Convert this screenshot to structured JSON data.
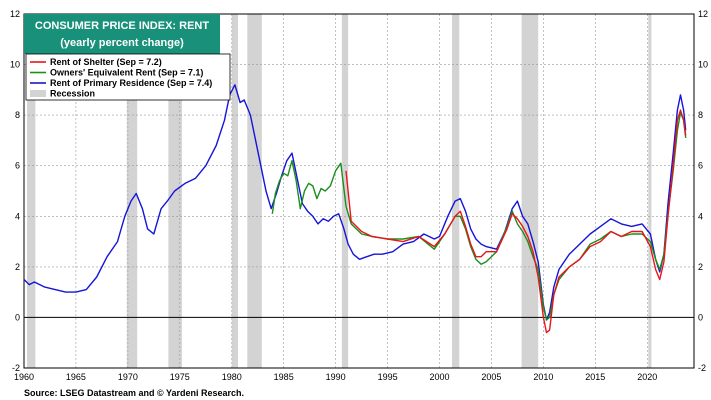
{
  "chart_data": {
    "type": "line",
    "title": "CONSUMER PRICE INDEX: RENT",
    "subtitle": "(yearly percent change)",
    "source": "Source: LSEG Datastream and © Yardeni Research.",
    "xlim": [
      1960,
      2024.5
    ],
    "ylim": [
      -2,
      12
    ],
    "x_ticks": [
      1960,
      1965,
      1970,
      1975,
      1980,
      1985,
      1990,
      1995,
      2000,
      2005,
      2010,
      2015,
      2020
    ],
    "y_ticks": [
      -2,
      0,
      2,
      4,
      6,
      8,
      10,
      12
    ],
    "grid": true,
    "legend_position": "top-left",
    "recessions": [
      [
        1960.3,
        1961.1
      ],
      [
        1969.9,
        1970.9
      ],
      [
        1973.9,
        1975.2
      ],
      [
        1980.0,
        1980.6
      ],
      [
        1981.5,
        1982.9
      ],
      [
        1990.6,
        1991.2
      ],
      [
        2001.2,
        2001.9
      ],
      [
        2007.9,
        2009.5
      ],
      [
        2020.1,
        2020.4
      ]
    ],
    "series": [
      {
        "name": "Rent of Shelter (Sep = 7.2)",
        "color": "#e8151b",
        "points": [
          [
            1991.0,
            5.8
          ],
          [
            1991.5,
            3.8
          ],
          [
            1992.5,
            3.4
          ],
          [
            1993.5,
            3.2
          ],
          [
            1995.0,
            3.1
          ],
          [
            1996.5,
            3.0
          ],
          [
            1998.0,
            3.2
          ],
          [
            1999.5,
            2.8
          ],
          [
            2000.5,
            3.3
          ],
          [
            2001.5,
            4.0
          ],
          [
            2002.0,
            4.2
          ],
          [
            2002.5,
            3.6
          ],
          [
            2003.0,
            2.9
          ],
          [
            2003.5,
            2.4
          ],
          [
            2004.0,
            2.4
          ],
          [
            2004.5,
            2.6
          ],
          [
            2005.5,
            2.6
          ],
          [
            2006.5,
            3.5
          ],
          [
            2007.0,
            4.1
          ],
          [
            2007.5,
            3.9
          ],
          [
            2008.0,
            3.6
          ],
          [
            2008.5,
            3.2
          ],
          [
            2009.0,
            2.6
          ],
          [
            2009.5,
            1.6
          ],
          [
            2010.0,
            0.0
          ],
          [
            2010.3,
            -0.6
          ],
          [
            2010.6,
            -0.5
          ],
          [
            2011.0,
            0.9
          ],
          [
            2011.5,
            1.6
          ],
          [
            2012.5,
            2.0
          ],
          [
            2013.5,
            2.3
          ],
          [
            2014.5,
            2.8
          ],
          [
            2015.5,
            3.0
          ],
          [
            2016.5,
            3.4
          ],
          [
            2017.5,
            3.2
          ],
          [
            2018.5,
            3.4
          ],
          [
            2019.5,
            3.4
          ],
          [
            2020.3,
            2.8
          ],
          [
            2020.8,
            1.9
          ],
          [
            2021.2,
            1.5
          ],
          [
            2021.6,
            2.2
          ],
          [
            2022.0,
            4.0
          ],
          [
            2022.5,
            6.0
          ],
          [
            2022.9,
            7.8
          ],
          [
            2023.2,
            8.2
          ],
          [
            2023.5,
            7.8
          ],
          [
            2023.7,
            7.2
          ]
        ]
      },
      {
        "name": "Owners' Equivalent Rent (Sep = 7.1)",
        "color": "#1a8f1a",
        "points": [
          [
            1983.9,
            4.1
          ],
          [
            1984.2,
            4.9
          ],
          [
            1984.6,
            5.4
          ],
          [
            1985.0,
            5.7
          ],
          [
            1985.4,
            5.6
          ],
          [
            1985.8,
            6.2
          ],
          [
            1986.2,
            5.4
          ],
          [
            1986.6,
            4.3
          ],
          [
            1987.0,
            5.0
          ],
          [
            1987.4,
            5.3
          ],
          [
            1987.8,
            5.2
          ],
          [
            1988.2,
            4.7
          ],
          [
            1988.6,
            5.1
          ],
          [
            1989.0,
            5.0
          ],
          [
            1989.5,
            5.2
          ],
          [
            1990.0,
            5.8
          ],
          [
            1990.5,
            6.1
          ],
          [
            1991.0,
            4.4
          ],
          [
            1991.5,
            3.7
          ],
          [
            1992.5,
            3.3
          ],
          [
            1993.5,
            3.2
          ],
          [
            1995.0,
            3.1
          ],
          [
            1996.5,
            3.1
          ],
          [
            1998.0,
            3.2
          ],
          [
            1999.5,
            2.7
          ],
          [
            2000.5,
            3.3
          ],
          [
            2001.5,
            4.0
          ],
          [
            2002.0,
            4.0
          ],
          [
            2002.5,
            3.5
          ],
          [
            2003.0,
            2.8
          ],
          [
            2003.5,
            2.3
          ],
          [
            2004.0,
            2.1
          ],
          [
            2004.5,
            2.2
          ],
          [
            2005.5,
            2.6
          ],
          [
            2006.5,
            3.6
          ],
          [
            2007.0,
            4.2
          ],
          [
            2007.5,
            3.7
          ],
          [
            2008.0,
            3.4
          ],
          [
            2008.5,
            3.0
          ],
          [
            2009.0,
            2.4
          ],
          [
            2009.5,
            1.9
          ],
          [
            2010.0,
            0.4
          ],
          [
            2010.3,
            -0.1
          ],
          [
            2010.6,
            0.0
          ],
          [
            2011.0,
            0.9
          ],
          [
            2011.5,
            1.5
          ],
          [
            2012.5,
            2.0
          ],
          [
            2013.5,
            2.3
          ],
          [
            2014.5,
            2.9
          ],
          [
            2015.5,
            3.1
          ],
          [
            2016.5,
            3.4
          ],
          [
            2017.5,
            3.2
          ],
          [
            2018.5,
            3.3
          ],
          [
            2019.5,
            3.3
          ],
          [
            2020.3,
            3.0
          ],
          [
            2020.8,
            2.3
          ],
          [
            2021.2,
            1.9
          ],
          [
            2021.6,
            2.5
          ],
          [
            2022.0,
            4.1
          ],
          [
            2022.5,
            5.8
          ],
          [
            2022.9,
            7.4
          ],
          [
            2023.2,
            8.1
          ],
          [
            2023.5,
            7.8
          ],
          [
            2023.7,
            7.1
          ]
        ]
      },
      {
        "name": "Rent of Primary Residence (Sep = 7.4)",
        "color": "#1515d9",
        "points": [
          [
            1960.0,
            1.5
          ],
          [
            1960.5,
            1.3
          ],
          [
            1961.0,
            1.4
          ],
          [
            1962.0,
            1.2
          ],
          [
            1963.0,
            1.1
          ],
          [
            1964.0,
            1.0
          ],
          [
            1965.0,
            1.0
          ],
          [
            1966.0,
            1.1
          ],
          [
            1967.0,
            1.6
          ],
          [
            1968.0,
            2.4
          ],
          [
            1969.0,
            3.0
          ],
          [
            1969.7,
            4.0
          ],
          [
            1970.3,
            4.6
          ],
          [
            1970.8,
            4.9
          ],
          [
            1971.4,
            4.3
          ],
          [
            1971.9,
            3.5
          ],
          [
            1972.5,
            3.3
          ],
          [
            1973.2,
            4.3
          ],
          [
            1973.8,
            4.6
          ],
          [
            1974.5,
            5.0
          ],
          [
            1975.5,
            5.3
          ],
          [
            1976.5,
            5.5
          ],
          [
            1977.5,
            6.0
          ],
          [
            1978.5,
            6.8
          ],
          [
            1979.3,
            7.8
          ],
          [
            1979.8,
            8.8
          ],
          [
            1980.3,
            9.2
          ],
          [
            1980.8,
            8.5
          ],
          [
            1981.2,
            8.6
          ],
          [
            1981.8,
            8.0
          ],
          [
            1982.3,
            7.0
          ],
          [
            1982.8,
            6.0
          ],
          [
            1983.3,
            5.0
          ],
          [
            1983.8,
            4.3
          ],
          [
            1984.3,
            4.9
          ],
          [
            1984.8,
            5.6
          ],
          [
            1985.3,
            6.2
          ],
          [
            1985.8,
            6.5
          ],
          [
            1986.3,
            5.5
          ],
          [
            1986.8,
            4.5
          ],
          [
            1987.3,
            4.2
          ],
          [
            1987.8,
            4.0
          ],
          [
            1988.3,
            3.7
          ],
          [
            1988.8,
            3.9
          ],
          [
            1989.3,
            3.8
          ],
          [
            1989.8,
            4.0
          ],
          [
            1990.3,
            4.1
          ],
          [
            1990.8,
            3.5
          ],
          [
            1991.2,
            2.9
          ],
          [
            1991.7,
            2.5
          ],
          [
            1992.3,
            2.3
          ],
          [
            1993.0,
            2.4
          ],
          [
            1993.7,
            2.5
          ],
          [
            1994.5,
            2.5
          ],
          [
            1995.5,
            2.6
          ],
          [
            1996.5,
            2.9
          ],
          [
            1997.5,
            3.0
          ],
          [
            1998.5,
            3.3
          ],
          [
            1999.5,
            3.1
          ],
          [
            2000.0,
            3.2
          ],
          [
            2000.8,
            4.0
          ],
          [
            2001.5,
            4.6
          ],
          [
            2002.0,
            4.7
          ],
          [
            2002.5,
            4.2
          ],
          [
            2003.0,
            3.5
          ],
          [
            2003.5,
            3.1
          ],
          [
            2004.0,
            2.9
          ],
          [
            2004.5,
            2.8
          ],
          [
            2005.5,
            2.7
          ],
          [
            2006.3,
            3.4
          ],
          [
            2007.0,
            4.3
          ],
          [
            2007.5,
            4.6
          ],
          [
            2008.0,
            4.0
          ],
          [
            2008.5,
            3.7
          ],
          [
            2009.0,
            3.0
          ],
          [
            2009.5,
            2.2
          ],
          [
            2010.0,
            0.5
          ],
          [
            2010.3,
            -0.1
          ],
          [
            2010.6,
            0.2
          ],
          [
            2011.0,
            1.2
          ],
          [
            2011.5,
            1.9
          ],
          [
            2012.5,
            2.5
          ],
          [
            2013.5,
            2.9
          ],
          [
            2014.5,
            3.3
          ],
          [
            2015.5,
            3.6
          ],
          [
            2016.5,
            3.9
          ],
          [
            2017.5,
            3.7
          ],
          [
            2018.5,
            3.6
          ],
          [
            2019.5,
            3.7
          ],
          [
            2020.3,
            3.3
          ],
          [
            2020.8,
            2.3
          ],
          [
            2021.2,
            1.8
          ],
          [
            2021.6,
            2.5
          ],
          [
            2022.0,
            4.5
          ],
          [
            2022.5,
            6.5
          ],
          [
            2022.9,
            8.2
          ],
          [
            2023.2,
            8.8
          ],
          [
            2023.5,
            8.2
          ],
          [
            2023.7,
            7.4
          ]
        ]
      }
    ],
    "legend": [
      {
        "label": "Rent of Shelter (Sep = 7.2)",
        "color": "#e8151b",
        "kind": "line"
      },
      {
        "label": "Owners' Equivalent Rent (Sep = 7.1)",
        "color": "#1a8f1a",
        "kind": "line"
      },
      {
        "label": "Rent of Primary Residence (Sep = 7.4)",
        "color": "#1515d9",
        "kind": "line"
      },
      {
        "label": "Recession",
        "color": "#d3d3d3",
        "kind": "box"
      }
    ]
  }
}
